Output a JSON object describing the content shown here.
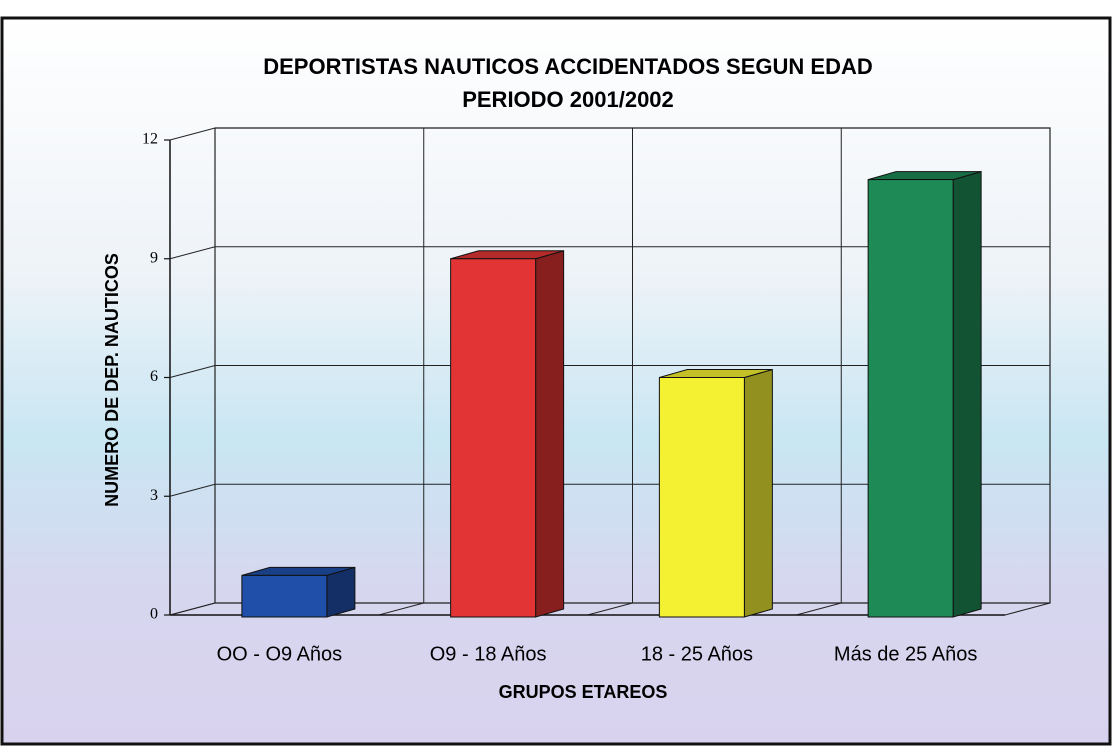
{
  "chart_data": {
    "type": "bar3d",
    "title": "DEPORTISTAS NAUTICOS ACCIDENTADOS SEGUN EDAD",
    "subtitle": "PERIODO 2001/2002",
    "x_label": "GRUPOS ETAREOS",
    "y_label": "NUMERO DE DEP. NAUTICOS",
    "categories": [
      "OO - O9 Años",
      "O9 - 18 Años",
      "18 - 25 Años",
      "Más de 25 Años"
    ],
    "values": [
      1,
      9,
      6,
      11
    ],
    "colors": [
      "#1f4fa8",
      "#e23434",
      "#f4f032",
      "#1e8a55"
    ],
    "ylim": [
      0,
      12
    ],
    "yticks": [
      0,
      3,
      6,
      9,
      12
    ],
    "grid": true
  }
}
